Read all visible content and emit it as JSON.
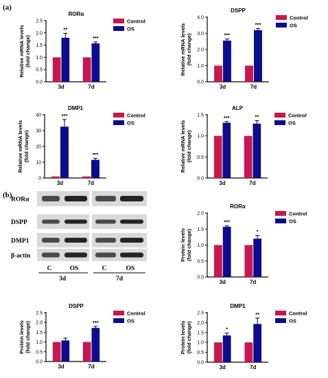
{
  "panel_letters": {
    "a": "(a)",
    "b": "(b)"
  },
  "legend": {
    "control": "Control",
    "os": "OS"
  },
  "colors": {
    "control": "#c8174e",
    "os": "#0c0c8f",
    "axis": "#000000",
    "blot_bg": "#d9d9d9",
    "band": "#1a1a1a"
  },
  "western_blot": {
    "rows": [
      "RORα",
      "DSPP",
      "DMP1",
      "β-actin"
    ],
    "lane_labels": [
      "C",
      "OS",
      "C",
      "OS"
    ],
    "time_labels": [
      "3d",
      "7d"
    ]
  },
  "chart_data": [
    {
      "type": "bar",
      "title": "RORα",
      "ylabel_lines": [
        "Relative mRNA levels",
        "(fold change)"
      ],
      "categories": [
        "3d",
        "7d"
      ],
      "series": [
        {
          "name": "Control",
          "values": [
            1.0,
            1.0
          ],
          "errors": [
            0,
            0
          ]
        },
        {
          "name": "OS",
          "values": [
            1.8,
            1.57
          ],
          "errors": [
            0.18,
            0.06
          ]
        }
      ],
      "significance": [
        "**",
        "***"
      ],
      "ylim": [
        0,
        2.5
      ],
      "yticks": [
        "0.0",
        "0.5",
        "1.0",
        "1.5",
        "2.0",
        "2.5"
      ],
      "legend": "right"
    },
    {
      "type": "bar",
      "title": "DSPP",
      "ylabel_lines": [
        "Relative mRNA levels",
        "(fold change)"
      ],
      "categories": [
        "3d",
        "7d"
      ],
      "series": [
        {
          "name": "Control",
          "values": [
            1.0,
            1.0
          ],
          "errors": [
            0,
            0
          ]
        },
        {
          "name": "OS",
          "values": [
            2.55,
            3.2
          ],
          "errors": [
            0.1,
            0.1
          ]
        }
      ],
      "significance": [
        "***",
        "***"
      ],
      "ylim": [
        0,
        4.0
      ],
      "yticks": [
        "0.0",
        "1.0",
        "2.0",
        "3.0",
        "4.0"
      ],
      "legend": "right"
    },
    {
      "type": "bar",
      "title": "DMP1",
      "ylabel_lines": [
        "Relative mRNA levels",
        "(fold change)"
      ],
      "categories": [
        "3d",
        "7d"
      ],
      "series": [
        {
          "name": "Control",
          "values": [
            1.0,
            1.0
          ],
          "errors": [
            0,
            0
          ]
        },
        {
          "name": "OS",
          "values": [
            32.5,
            11.5
          ],
          "errors": [
            4.5,
            1.0
          ]
        }
      ],
      "significance": [
        "***",
        "***"
      ],
      "ylim": [
        0,
        40
      ],
      "yticks": [
        "0",
        "10",
        "20",
        "30",
        "40"
      ],
      "legend": "right"
    },
    {
      "type": "bar",
      "title": "ALP",
      "ylabel_lines": [
        "Relative mRNA levels",
        "(fold change)"
      ],
      "categories": [
        "3d",
        "7d"
      ],
      "series": [
        {
          "name": "Control",
          "values": [
            1.0,
            1.0
          ],
          "errors": [
            0,
            0
          ]
        },
        {
          "name": "OS",
          "values": [
            1.31,
            1.29
          ],
          "errors": [
            0.03,
            0.07
          ]
        }
      ],
      "significance": [
        "***",
        "**"
      ],
      "ylim": [
        0,
        1.5
      ],
      "yticks": [
        "0.0",
        "0.5",
        "1.0",
        "1.5"
      ],
      "legend": "right"
    },
    {
      "type": "bar",
      "title": "RORα",
      "ylabel_lines": [
        "Protein levels",
        "(fold change)"
      ],
      "categories": [
        "3d",
        "7d"
      ],
      "series": [
        {
          "name": "Control",
          "values": [
            1.0,
            1.0
          ],
          "errors": [
            0,
            0
          ]
        },
        {
          "name": "OS",
          "values": [
            1.57,
            1.2
          ],
          "errors": [
            0.03,
            0.1
          ]
        }
      ],
      "significance": [
        "***",
        "*"
      ],
      "ylim": [
        0,
        2.0
      ],
      "yticks": [
        "0.0",
        "0.5",
        "1.0",
        "1.5",
        "2.0"
      ],
      "legend": "right"
    },
    {
      "type": "bar",
      "title": "DSPP",
      "ylabel_lines": [
        "Protein levels",
        "(fold change)"
      ],
      "categories": [
        "3d",
        "7d"
      ],
      "series": [
        {
          "name": "Control",
          "values": [
            1.0,
            1.0
          ],
          "errors": [
            0,
            0
          ]
        },
        {
          "name": "OS",
          "values": [
            1.08,
            1.72
          ],
          "errors": [
            0.12,
            0.08
          ]
        }
      ],
      "significance": [
        "",
        "***"
      ],
      "ylim": [
        0,
        2.5
      ],
      "yticks": [
        "0.0",
        "0.5",
        "1.0",
        "1.5",
        "2.0",
        "2.5"
      ],
      "legend": "right"
    },
    {
      "type": "bar",
      "title": "DMP1",
      "ylabel_lines": [
        "Protein levels",
        "(fold change)"
      ],
      "categories": [
        "3d",
        "7d"
      ],
      "series": [
        {
          "name": "Control",
          "values": [
            1.0,
            1.0
          ],
          "errors": [
            0,
            0
          ]
        },
        {
          "name": "OS",
          "values": [
            1.35,
            1.93
          ],
          "errors": [
            0.12,
            0.3
          ]
        }
      ],
      "significance": [
        "*",
        "**"
      ],
      "ylim": [
        0,
        2.5
      ],
      "yticks": [
        "0.0",
        "0.5",
        "1.0",
        "1.5",
        "2.0",
        "2.5"
      ],
      "legend": "right"
    }
  ]
}
